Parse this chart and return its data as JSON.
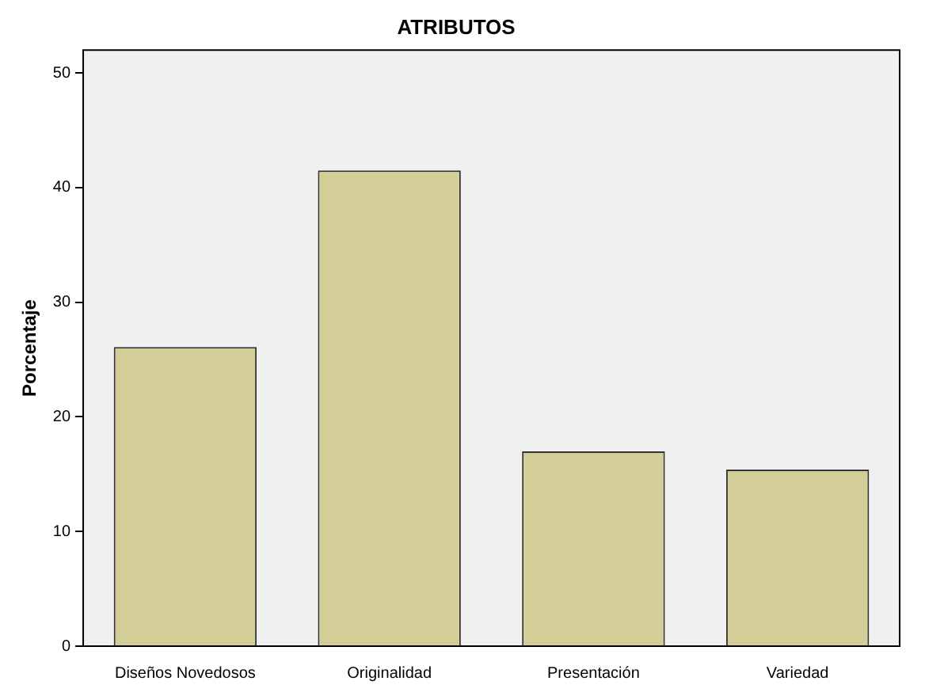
{
  "chart_data": {
    "type": "bar",
    "title": "ATRIBUTOS",
    "ylabel": "Porcentaje",
    "categories": [
      "Diseños Novedosos",
      "Originalidad",
      "Presentación",
      "Variedad"
    ],
    "values": [
      26.1,
      41.5,
      17.0,
      15.4
    ],
    "color": "#d3ce97",
    "ylim": [
      0,
      52
    ],
    "yticks": [
      0,
      10,
      20,
      30,
      40,
      50
    ],
    "grid": false,
    "legend": false
  }
}
